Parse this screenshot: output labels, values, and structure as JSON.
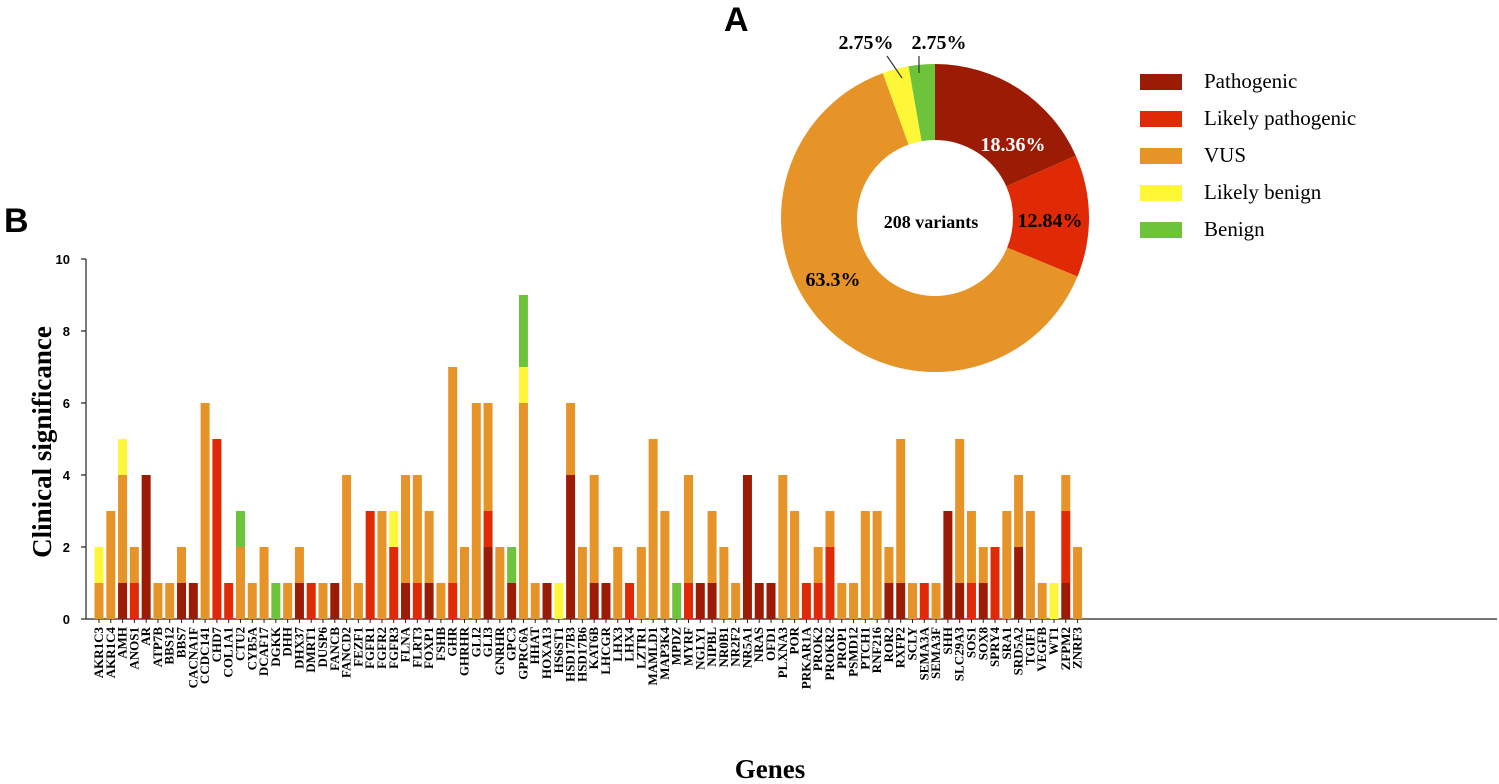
{
  "panel_a_label": "A",
  "panel_b_label": "B",
  "colors": {
    "Pathogenic": "#9b1b05",
    "Likely pathogenic": "#df2a05",
    "VUS": "#e69327",
    "Likely benign": "#fef737",
    "Benign": "#6dc33a"
  },
  "chart_data": [
    {
      "type": "pie",
      "center_label": "208 variants",
      "slices": [
        {
          "name": "Pathogenic",
          "value": 18.36,
          "label": "18.36%"
        },
        {
          "name": "Likely pathogenic",
          "value": 12.84,
          "label": "12.84%"
        },
        {
          "name": "VUS",
          "value": 63.3,
          "label": "63.3%"
        },
        {
          "name": "Likely benign",
          "value": 2.75,
          "label": "2.75%"
        },
        {
          "name": "Benign",
          "value": 2.75,
          "label": "2.75%"
        }
      ],
      "legend": [
        "Pathogenic",
        "Likely pathogenic",
        "VUS",
        "Likely benign",
        "Benign"
      ],
      "legend_position": "right"
    },
    {
      "type": "bar",
      "stacked": true,
      "xlabel": "Genes",
      "ylabel": "Clinical significance",
      "ylim": [
        0,
        10
      ],
      "yticks": [
        "0",
        "2",
        "4",
        "6",
        "8",
        "10"
      ],
      "categories": [
        "AKR1C3",
        "AKR1C4",
        "AMH",
        "ANOS1",
        "AR",
        "ATP7B",
        "BBS12",
        "BBS7",
        "CACNA1F",
        "CCDC141",
        "CHD7",
        "COL1A1",
        "CTU2",
        "CYB5A",
        "DCAF17",
        "DGKK",
        "DHH",
        "DHX37",
        "DMRT1",
        "DUSP6",
        "FANCB",
        "FANCD2",
        "FEZF1",
        "FGFR1",
        "FGFR2",
        "FGFR3",
        "FLNA",
        "FLRT3",
        "FOXP1",
        "FSHB",
        "GHR",
        "GHRHR",
        "GLI2",
        "GLI3",
        "GNRHR",
        "GPC3",
        "GPRC6A",
        "HHAT",
        "HOXA13",
        "HS6ST1",
        "HSD17B3",
        "HSD17B6",
        "KAT6B",
        "LHCGR",
        "LHX3",
        "LHX4",
        "LZTR1",
        "MAMLD1",
        "MAP3K4",
        "MPDZ",
        "MYRF",
        "NGLY1",
        "NIPBL",
        "NR0B1",
        "NR2F2",
        "NR5A1",
        "NRAS",
        "OFD1",
        "PLXNA3",
        "POR",
        "PRKAR1A",
        "PROK2",
        "PROKR2",
        "PROP1",
        "PSMD12",
        "PTCH1",
        "RNF216",
        "ROR2",
        "RXFP2",
        "SCLY",
        "SEMA3A",
        "SEMA3F",
        "SHH",
        "SLC29A3",
        "SOS1",
        "SOX8",
        "SPRY4",
        "SRA1",
        "SRD5A2",
        "TGIF1",
        "VEGFB",
        "WT1",
        "ZFPM2",
        "ZNRF3"
      ],
      "series": [
        {
          "name": "Pathogenic",
          "values": [
            0,
            0,
            1,
            0,
            4,
            0,
            0,
            1,
            1,
            0,
            0,
            0,
            0,
            0,
            0,
            0,
            0,
            1,
            0,
            0,
            1,
            0,
            0,
            0,
            0,
            0,
            1,
            0,
            1,
            0,
            0,
            0,
            0,
            2,
            0,
            1,
            0,
            0,
            1,
            0,
            4,
            0,
            1,
            1,
            0,
            0,
            0,
            0,
            0,
            0,
            0,
            1,
            1,
            0,
            0,
            4,
            1,
            1,
            0,
            0,
            0,
            0,
            0,
            0,
            0,
            0,
            0,
            1,
            1,
            0,
            0,
            0,
            3,
            1,
            0,
            1,
            0,
            0,
            2,
            0,
            0,
            0,
            1,
            0
          ]
        },
        {
          "name": "Likely pathogenic",
          "values": [
            0,
            0,
            0,
            1,
            0,
            0,
            0,
            0,
            0,
            0,
            5,
            1,
            0,
            0,
            0,
            0,
            0,
            0,
            1,
            0,
            0,
            0,
            0,
            3,
            0,
            2,
            0,
            1,
            0,
            0,
            1,
            0,
            0,
            1,
            0,
            0,
            0,
            0,
            0,
            0,
            0,
            0,
            0,
            0,
            0,
            1,
            0,
            0,
            0,
            0,
            1,
            0,
            0,
            0,
            0,
            0,
            0,
            0,
            0,
            0,
            1,
            1,
            2,
            0,
            0,
            0,
            0,
            0,
            0,
            0,
            1,
            0,
            0,
            0,
            1,
            0,
            2,
            0,
            0,
            0,
            0,
            0,
            2,
            0
          ]
        },
        {
          "name": "VUS",
          "values": [
            1,
            3,
            3,
            1,
            0,
            1,
            1,
            1,
            0,
            6,
            0,
            0,
            2,
            1,
            2,
            0,
            1,
            1,
            0,
            1,
            0,
            4,
            1,
            0,
            3,
            0,
            3,
            3,
            2,
            1,
            6,
            2,
            6,
            3,
            2,
            0,
            6,
            1,
            0,
            0,
            2,
            2,
            3,
            0,
            2,
            0,
            2,
            5,
            3,
            0,
            3,
            0,
            2,
            2,
            1,
            0,
            0,
            0,
            4,
            3,
            0,
            1,
            1,
            1,
            1,
            3,
            3,
            1,
            4,
            1,
            0,
            1,
            0,
            4,
            2,
            1,
            0,
            3,
            2,
            3,
            1,
            0,
            1,
            2
          ]
        },
        {
          "name": "Likely benign",
          "values": [
            1,
            0,
            1,
            0,
            0,
            0,
            0,
            0,
            0,
            0,
            0,
            0,
            0,
            0,
            0,
            0,
            0,
            0,
            0,
            0,
            0,
            0,
            0,
            0,
            0,
            1,
            0,
            0,
            0,
            0,
            0,
            0,
            0,
            0,
            0,
            0,
            1,
            0,
            0,
            1,
            0,
            0,
            0,
            0,
            0,
            0,
            0,
            0,
            0,
            0,
            0,
            0,
            0,
            0,
            0,
            0,
            0,
            0,
            0,
            0,
            0,
            0,
            0,
            0,
            0,
            0,
            0,
            0,
            0,
            0,
            0,
            0,
            0,
            0,
            0,
            0,
            0,
            0,
            0,
            0,
            0,
            1,
            0,
            0
          ]
        },
        {
          "name": "Benign",
          "values": [
            0,
            0,
            0,
            0,
            0,
            0,
            0,
            0,
            0,
            0,
            0,
            0,
            1,
            0,
            0,
            1,
            0,
            0,
            0,
            0,
            0,
            0,
            0,
            0,
            0,
            0,
            0,
            0,
            0,
            0,
            0,
            0,
            0,
            0,
            0,
            1,
            2,
            0,
            0,
            0,
            0,
            0,
            0,
            0,
            0,
            0,
            0,
            0,
            0,
            1,
            0,
            0,
            0,
            0,
            0,
            0,
            0,
            0,
            0,
            0,
            0,
            0,
            0,
            0,
            0,
            0,
            0,
            0,
            0,
            0,
            0,
            0,
            0,
            0,
            0,
            0,
            0,
            0,
            0,
            0,
            0,
            0,
            0,
            0
          ]
        }
      ]
    }
  ]
}
